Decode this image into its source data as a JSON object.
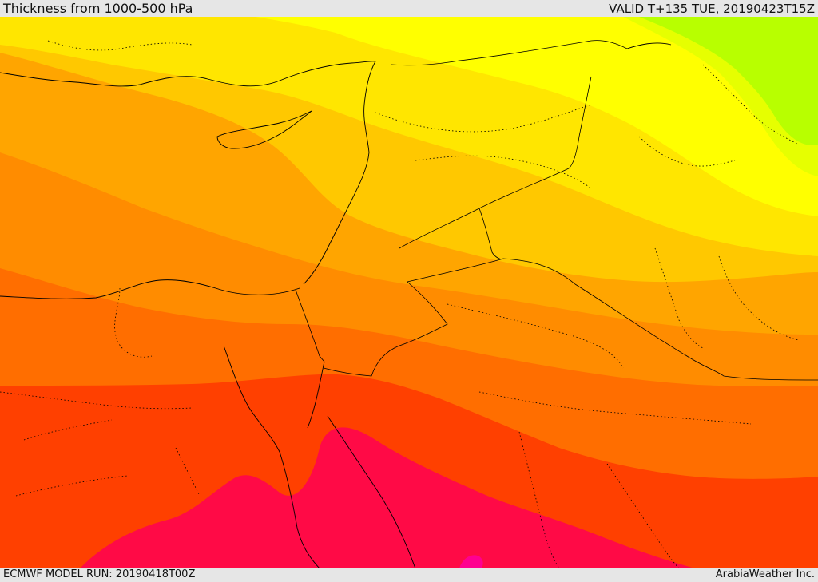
{
  "header": {
    "title": "Thickness from 1000-500 hPa",
    "valid": "VALID T+135 TUE, 20190423T15Z"
  },
  "footer": {
    "model_run": "ECMWF MODEL RUN: 20190418T00Z",
    "credit": "ArabiaWeather Inc."
  },
  "map": {
    "colors": {
      "band_green": "#b8ff00",
      "band_yellow_green": "#e6ff00",
      "band_yellow": "#ffff00",
      "band_light_gold": "#ffe600",
      "band_gold": "#ffc800",
      "band_orange_light": "#ffa500",
      "band_orange": "#ff8c00",
      "band_orange_dark": "#ff6e00",
      "band_red_orange": "#ff4000",
      "band_crimson": "#ff0a46",
      "band_magenta": "#ff0090"
    }
  }
}
